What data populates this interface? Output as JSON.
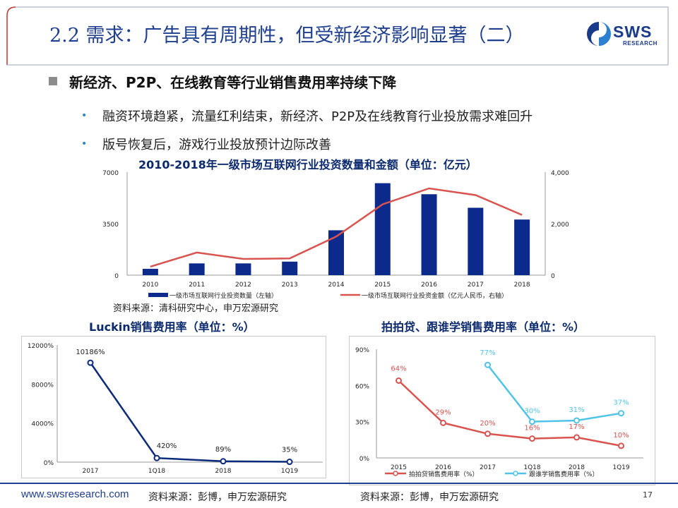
{
  "header": {
    "title": "2.2 需求：广告具有周期性，但受新经济影响显著（二）",
    "logo_text": "SWS",
    "logo_sub": "RESEARCH"
  },
  "section": {
    "heading": "新经济、P2P、在线教育等行业销售费用率持续下降",
    "bullets": [
      "融资环境趋紧，流量红利结束，新经济、P2P及在线教育行业投放需求难回升",
      "版号恢复后，游戏行业投放预计边际改善"
    ]
  },
  "chart_data": [
    {
      "type": "bar",
      "title": "2010-2018年一级市场互联网行业投资数量和金额（单位：亿元）",
      "categories": [
        "2010",
        "2011",
        "2012",
        "2013",
        "2014",
        "2015",
        "2016",
        "2017",
        "2018"
      ],
      "y_left_ticks": [
        "7000",
        "3500",
        "0"
      ],
      "y_right_ticks": [
        "4,000",
        "2,000",
        "0"
      ],
      "ylim_left": [
        0,
        7000
      ],
      "ylim_right": [
        0,
        4000
      ],
      "series": [
        {
          "name": "一级市场互联网行业投资数量（左轴）",
          "type": "bar",
          "axis": "left",
          "values": [
            430,
            800,
            800,
            920,
            3050,
            6250,
            5500,
            4580,
            3780
          ],
          "color": "#0b2a8c"
        },
        {
          "name": "一级市场互联网行业投资金额（亿元人民币，右轴）",
          "type": "line",
          "axis": "right",
          "values": [
            330,
            880,
            630,
            650,
            1500,
            2750,
            3370,
            3110,
            2340
          ],
          "color": "#d9534f"
        }
      ],
      "legend": "bottom",
      "source": "资料来源：清科研究中心，申万宏源研究"
    },
    {
      "type": "line",
      "title": "Luckin销售费用率（单位：%）",
      "categories": [
        "2017",
        "1Q18",
        "2018",
        "1Q19"
      ],
      "y_ticks": [
        "12000%",
        "8000%",
        "4000%",
        "0%"
      ],
      "ylim": [
        0,
        12000
      ],
      "series": [
        {
          "values": [
            10186,
            420,
            89,
            35
          ],
          "labels": [
            "10186%",
            "420%",
            "89%",
            "35%"
          ],
          "color": "#0b2a7a"
        }
      ],
      "source": "资料来源：彭博，申万宏源研究"
    },
    {
      "type": "line",
      "title": "拍拍贷、跟谁学销售费用率（单位：%）",
      "categories": [
        "2015",
        "2016",
        "2017",
        "1Q18",
        "2018",
        "1Q19"
      ],
      "y_ticks": [
        "90%",
        "60%",
        "30%",
        "0%"
      ],
      "ylim": [
        0,
        90
      ],
      "series": [
        {
          "name": "拍拍贷销售费用率（%）",
          "values": [
            64,
            29,
            20,
            16,
            17,
            10
          ],
          "labels": [
            "64%",
            "29%",
            "20%",
            "16%",
            "17%",
            "10%"
          ],
          "color": "#d9534f"
        },
        {
          "name": "跟谁学销售费用率（%）",
          "values": [
            null,
            null,
            77,
            30,
            31,
            37
          ],
          "labels": [
            "",
            "",
            "77%",
            "30%",
            "31%",
            "37%"
          ],
          "color": "#4fc3e8"
        }
      ],
      "legend": "bottom",
      "source": "资料来源：彭博，申万宏源研究"
    }
  ],
  "footer": {
    "url": "www.swsresearch.com",
    "page": "17"
  }
}
